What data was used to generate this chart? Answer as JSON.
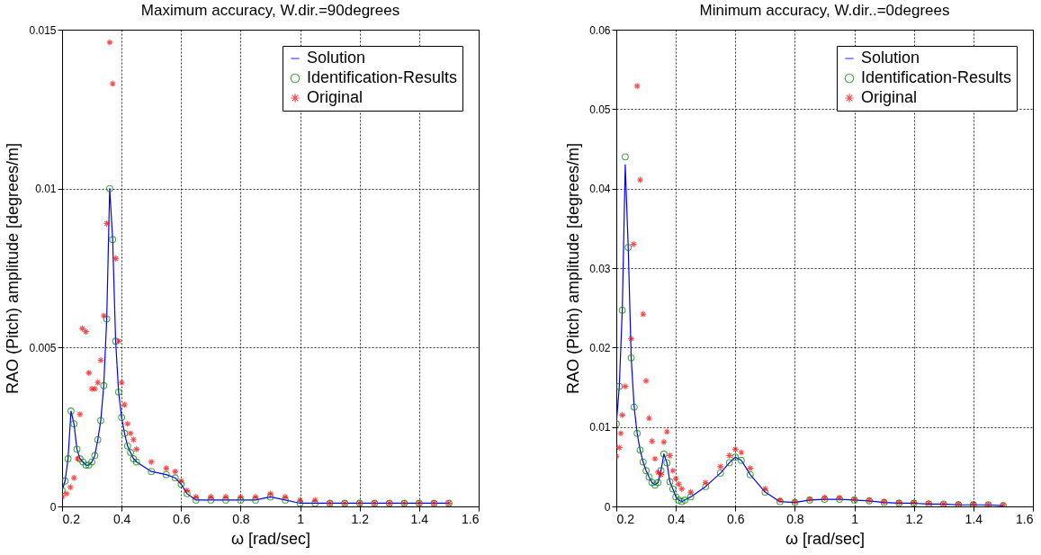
{
  "chart_data": [
    {
      "type": "scatter",
      "title": "Maximum accuracy, W.dir.=90degrees",
      "xlabel": "ω [rad/sec]",
      "ylabel": "RAO (Pitch) amplitude [degrees/m]",
      "xlim": [
        0.2,
        1.6
      ],
      "xticks": [
        0.2,
        0.4,
        0.6,
        0.8,
        1,
        1.2,
        1.4,
        1.6
      ],
      "ylim": [
        0,
        0.015
      ],
      "yticks": [
        0,
        0.005,
        0.01,
        0.015
      ],
      "grid": true,
      "legend": "top right",
      "series": [
        {
          "name": "Solution",
          "type": "line",
          "color": "#0000ff",
          "line_style": "solid",
          "x": [
            0.2,
            0.21,
            0.22,
            0.23,
            0.24,
            0.25,
            0.26,
            0.27,
            0.28,
            0.29,
            0.3,
            0.31,
            0.32,
            0.33,
            0.34,
            0.35,
            0.36,
            0.37,
            0.38,
            0.39,
            0.4,
            0.41,
            0.42,
            0.43,
            0.44,
            0.45,
            0.5,
            0.55,
            0.58,
            0.6,
            0.62,
            0.65,
            0.7,
            0.75,
            0.8,
            0.85,
            0.9,
            0.95,
            1.0,
            1.05,
            1.1,
            1.15,
            1.2,
            1.25,
            1.3,
            1.35,
            1.4,
            1.45,
            1.5
          ],
          "values": [
            0.0005,
            0.0008,
            0.0015,
            0.003,
            0.0026,
            0.0018,
            0.0015,
            0.0014,
            0.0013,
            0.0013,
            0.0014,
            0.0016,
            0.0021,
            0.0027,
            0.0038,
            0.0059,
            0.01,
            0.0084,
            0.0052,
            0.0036,
            0.0028,
            0.0023,
            0.0019,
            0.0017,
            0.0015,
            0.0014,
            0.0011,
            0.001,
            0.0009,
            0.0007,
            0.0004,
            0.0002,
            0.0002,
            0.0002,
            0.0002,
            0.0002,
            0.0003,
            0.0002,
            0.0001,
            0.0001,
            0.0001,
            0.0001,
            0.0001,
            0.0001,
            0.0001,
            0.0001,
            0.0001,
            0.0001,
            0.0001
          ]
        },
        {
          "name": "Identification-Results",
          "marker": "circle",
          "color": "#008000",
          "x": [
            0.2,
            0.21,
            0.22,
            0.23,
            0.24,
            0.25,
            0.26,
            0.27,
            0.28,
            0.29,
            0.3,
            0.31,
            0.32,
            0.33,
            0.34,
            0.35,
            0.36,
            0.37,
            0.38,
            0.39,
            0.4,
            0.41,
            0.42,
            0.43,
            0.44,
            0.45,
            0.5,
            0.55,
            0.58,
            0.6,
            0.62,
            0.65,
            0.7,
            0.75,
            0.8,
            0.85,
            0.9,
            0.95,
            1.0,
            1.05,
            1.1,
            1.15,
            1.2,
            1.25,
            1.3,
            1.35,
            1.4,
            1.45,
            1.5
          ],
          "values": [
            0.0005,
            0.0008,
            0.0015,
            0.003,
            0.0026,
            0.0018,
            0.0015,
            0.0014,
            0.0013,
            0.0013,
            0.0014,
            0.0016,
            0.0021,
            0.0027,
            0.0038,
            0.0059,
            0.01,
            0.0084,
            0.0052,
            0.0036,
            0.0028,
            0.0023,
            0.0019,
            0.0017,
            0.0015,
            0.0014,
            0.0011,
            0.001,
            0.0009,
            0.0007,
            0.0004,
            0.0002,
            0.0002,
            0.0002,
            0.0002,
            0.0002,
            0.0003,
            0.0002,
            0.0001,
            0.0001,
            0.0001,
            0.0001,
            0.0001,
            0.0001,
            0.0001,
            0.0001,
            0.0001,
            0.0001,
            0.0001
          ]
        },
        {
          "name": "Original",
          "marker": "cross",
          "color": "#ff0000",
          "x": [
            0.2,
            0.215,
            0.228,
            0.24,
            0.252,
            0.26,
            0.268,
            0.28,
            0.29,
            0.3,
            0.31,
            0.32,
            0.33,
            0.34,
            0.35,
            0.36,
            0.37,
            0.38,
            0.39,
            0.4,
            0.41,
            0.42,
            0.43,
            0.44,
            0.45,
            0.5,
            0.55,
            0.58,
            0.6,
            0.62,
            0.65,
            0.7,
            0.75,
            0.8,
            0.85,
            0.9,
            0.95,
            1.0,
            1.05,
            1.1,
            1.15,
            1.2,
            1.25,
            1.3,
            1.35,
            1.4,
            1.45,
            1.5
          ],
          "values": [
            0.0003,
            0.0004,
            0.0006,
            0.0009,
            0.0015,
            0.0029,
            0.0056,
            0.0055,
            0.0042,
            0.0037,
            0.0037,
            0.0039,
            0.0046,
            0.006,
            0.0089,
            0.0146,
            0.0133,
            0.0078,
            0.0052,
            0.0039,
            0.0032,
            0.0026,
            0.0023,
            0.0021,
            0.0018,
            0.0014,
            0.0012,
            0.0011,
            0.0008,
            0.0005,
            0.0003,
            0.0003,
            0.0003,
            0.0003,
            0.0003,
            0.0004,
            0.0003,
            0.0002,
            0.0002,
            0.0001,
            0.0001,
            0.0001,
            0.0001,
            0.0001,
            0.0001,
            0.0001,
            0.0001,
            0.0001
          ]
        }
      ]
    },
    {
      "type": "scatter",
      "title": "Minimum accuracy, W.dir..=0degrees",
      "xlabel": "ω [rad/sec]",
      "ylabel": "RAO (Pitch) amplitude [degrees/m]",
      "xlim": [
        0.2,
        1.6
      ],
      "xticks": [
        0.2,
        0.4,
        0.6,
        0.8,
        1,
        1.2,
        1.4,
        1.6
      ],
      "ylim": [
        0,
        0.06
      ],
      "yticks": [
        0,
        0.01,
        0.02,
        0.03,
        0.04,
        0.05,
        0.06
      ],
      "grid": true,
      "legend": "top right",
      "series": [
        {
          "name": "Solution",
          "type": "line",
          "color": "#0000ff",
          "line_style": "solid",
          "x": [
            0.2,
            0.21,
            0.22,
            0.23,
            0.24,
            0.25,
            0.26,
            0.27,
            0.28,
            0.29,
            0.3,
            0.31,
            0.32,
            0.33,
            0.34,
            0.35,
            0.36,
            0.37,
            0.38,
            0.39,
            0.4,
            0.41,
            0.42,
            0.43,
            0.45,
            0.5,
            0.55,
            0.58,
            0.6,
            0.62,
            0.65,
            0.7,
            0.75,
            0.8,
            0.85,
            0.9,
            0.95,
            1.0,
            1.05,
            1.1,
            1.15,
            1.2,
            1.25,
            1.3,
            1.35,
            1.4,
            1.45,
            1.5
          ],
          "values": [
            0.0104,
            0.0151,
            0.0247,
            0.043,
            0.0326,
            0.0187,
            0.0125,
            0.0092,
            0.0071,
            0.0056,
            0.0045,
            0.0037,
            0.003,
            0.0027,
            0.003,
            0.0045,
            0.0066,
            0.0055,
            0.0031,
            0.0022,
            0.0012,
            0.0008,
            0.0006,
            0.0008,
            0.0012,
            0.0025,
            0.0042,
            0.0055,
            0.0062,
            0.0058,
            0.004,
            0.0018,
            0.0006,
            0.0005,
            0.0008,
            0.0009,
            0.0009,
            0.0008,
            0.0007,
            0.0005,
            0.0004,
            0.0004,
            0.0003,
            0.0003,
            0.0002,
            0.0002,
            0.0002,
            0.0001
          ]
        },
        {
          "name": "Identification-Results",
          "marker": "circle",
          "color": "#008000",
          "x": [
            0.2,
            0.21,
            0.22,
            0.23,
            0.24,
            0.25,
            0.26,
            0.27,
            0.28,
            0.29,
            0.3,
            0.31,
            0.32,
            0.33,
            0.34,
            0.35,
            0.36,
            0.37,
            0.38,
            0.39,
            0.4,
            0.41,
            0.42,
            0.43,
            0.45,
            0.5,
            0.55,
            0.58,
            0.6,
            0.62,
            0.65,
            0.7,
            0.75,
            0.8,
            0.85,
            0.9,
            0.95,
            1.0,
            1.05,
            1.1,
            1.15,
            1.2,
            1.25,
            1.3,
            1.35,
            1.4,
            1.45,
            1.5
          ],
          "values": [
            0.0104,
            0.0151,
            0.0247,
            0.044,
            0.0326,
            0.0187,
            0.0125,
            0.0092,
            0.0071,
            0.0056,
            0.0045,
            0.0037,
            0.003,
            0.0027,
            0.003,
            0.0045,
            0.0066,
            0.0055,
            0.0031,
            0.0022,
            0.0012,
            0.0008,
            0.0006,
            0.0008,
            0.0012,
            0.0025,
            0.0042,
            0.0055,
            0.0062,
            0.0058,
            0.004,
            0.0018,
            0.0006,
            0.0005,
            0.0008,
            0.0009,
            0.0009,
            0.0008,
            0.0007,
            0.0005,
            0.0004,
            0.0004,
            0.0003,
            0.0003,
            0.0002,
            0.0002,
            0.0002,
            0.0001
          ]
        },
        {
          "name": "Original",
          "marker": "cross",
          "color": "#ff0000",
          "x": [
            0.2,
            0.21,
            0.215,
            0.22,
            0.23,
            0.25,
            0.258,
            0.27,
            0.28,
            0.29,
            0.3,
            0.31,
            0.32,
            0.33,
            0.34,
            0.35,
            0.36,
            0.37,
            0.38,
            0.39,
            0.4,
            0.41,
            0.42,
            0.45,
            0.5,
            0.55,
            0.58,
            0.6,
            0.62,
            0.65,
            0.7,
            0.75,
            0.8,
            0.85,
            0.9,
            0.95,
            1.0,
            1.05,
            1.1,
            1.15,
            1.2,
            1.25,
            1.3,
            1.35,
            1.4,
            1.45,
            1.5
          ],
          "values": [
            0.0063,
            0.0074,
            0.0092,
            0.0115,
            0.0151,
            0.0211,
            0.033,
            0.0529,
            0.0411,
            0.0242,
            0.0158,
            0.0111,
            0.0082,
            0.006,
            0.0043,
            0.004,
            0.0081,
            0.0094,
            0.0064,
            0.0045,
            0.0035,
            0.0028,
            0.0022,
            0.0018,
            0.003,
            0.005,
            0.0064,
            0.0072,
            0.0068,
            0.0048,
            0.0022,
            0.0008,
            0.0006,
            0.0009,
            0.0011,
            0.0011,
            0.0009,
            0.0008,
            0.0006,
            0.0005,
            0.0005,
            0.0004,
            0.0003,
            0.0003,
            0.0003,
            0.0002,
            0.0002
          ]
        }
      ]
    }
  ]
}
